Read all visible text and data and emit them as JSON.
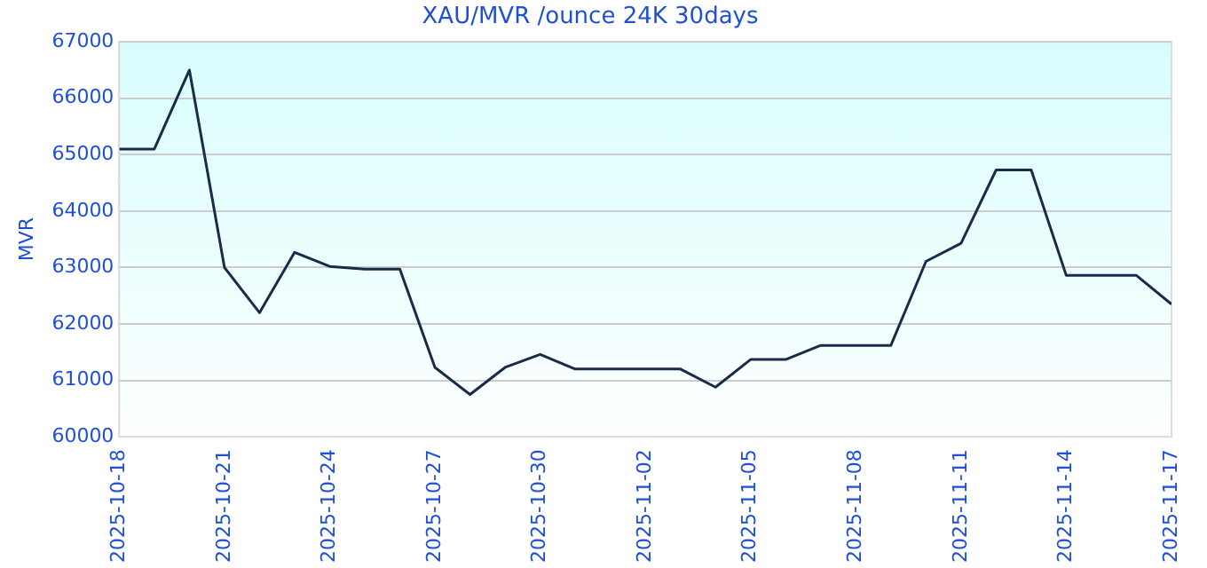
{
  "chart_data": {
    "type": "line",
    "title": "XAU/MVR /ounce 24K 30days",
    "ylabel": "MVR",
    "x": [
      "2025-10-18",
      "2025-10-19",
      "2025-10-20",
      "2025-10-21",
      "2025-10-22",
      "2025-10-23",
      "2025-10-24",
      "2025-10-25",
      "2025-10-26",
      "2025-10-27",
      "2025-10-28",
      "2025-10-29",
      "2025-10-30",
      "2025-10-31",
      "2025-11-01",
      "2025-11-02",
      "2025-11-03",
      "2025-11-04",
      "2025-11-05",
      "2025-11-06",
      "2025-11-07",
      "2025-11-08",
      "2025-11-09",
      "2025-11-10",
      "2025-11-11",
      "2025-11-12",
      "2025-11-13",
      "2025-11-14",
      "2025-11-15",
      "2025-11-16",
      "2025-11-17"
    ],
    "series": [
      {
        "color": "#1a2b4a",
        "values": [
          65100,
          65100,
          66500,
          63000,
          62200,
          63270,
          63020,
          62970,
          62970,
          61230,
          60750,
          61230,
          61460,
          61200,
          61200,
          61200,
          61200,
          60880,
          61370,
          61370,
          61620,
          61620,
          61620,
          63110,
          63430,
          64730,
          64730,
          62860,
          62860,
          62860,
          62350
        ]
      }
    ],
    "xlim": [
      "2025-10-18",
      "2025-11-17"
    ],
    "xticks": [
      "2025-10-18",
      "2025-10-21",
      "2025-10-24",
      "2025-10-27",
      "2025-10-30",
      "2025-11-02",
      "2025-11-05",
      "2025-11-08",
      "2025-11-11",
      "2025-11-14",
      "2025-11-17"
    ],
    "ylim": [
      60000,
      67000
    ],
    "yticks": [
      60000,
      61000,
      62000,
      63000,
      64000,
      65000,
      66000,
      67000
    ],
    "grid": "y",
    "legend": false,
    "marker": "none",
    "line_style": "solid"
  }
}
